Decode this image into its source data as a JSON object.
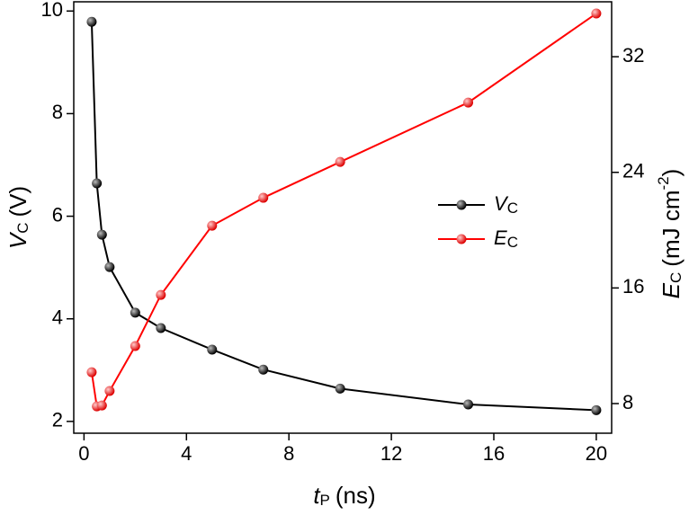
{
  "chart_data": {
    "type": "line",
    "xlabel": {
      "main": "t",
      "sub": "P",
      "unit": "(ns)"
    },
    "ylabel": {
      "main": "V",
      "sub": "C",
      "unit": "(V)"
    },
    "y2label": {
      "main": "E",
      "sub": "C",
      "unit": "(mJ cm",
      "sup": "-2",
      "close": ")"
    },
    "x": [
      0.3,
      0.5,
      0.7,
      1,
      2,
      3,
      5,
      7,
      10,
      15,
      20
    ],
    "series": [
      {
        "name": "V",
        "name_sub": "C",
        "color": "#000000",
        "axis": "y",
        "values": [
          9.79,
          6.64,
          5.64,
          5.01,
          4.12,
          3.82,
          3.4,
          3.01,
          2.64,
          2.33,
          2.22
        ]
      },
      {
        "name": "E",
        "name_sub": "C",
        "color": "#ff0000",
        "axis": "y2",
        "values": [
          10.17,
          7.81,
          7.87,
          8.87,
          11.98,
          15.52,
          20.31,
          22.24,
          24.72,
          28.83,
          34.99
        ]
      }
    ],
    "xlim": [
      -0.4,
      20.6
    ],
    "xticks": [
      0,
      4,
      8,
      12,
      16,
      20
    ],
    "ylim": [
      1.77,
      10.18
    ],
    "yticks": [
      2,
      4,
      6,
      8,
      10
    ],
    "y2lim": [
      5.95,
      35.8
    ],
    "y2ticks": [
      8,
      16,
      24,
      32
    ],
    "legend": "center-right"
  }
}
